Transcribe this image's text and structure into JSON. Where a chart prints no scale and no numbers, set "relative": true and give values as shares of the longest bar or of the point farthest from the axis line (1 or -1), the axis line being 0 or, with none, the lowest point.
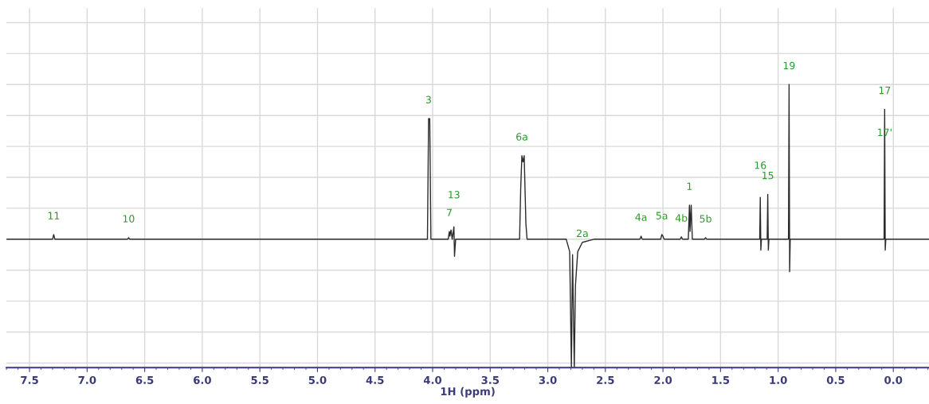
{
  "chart_data": {
    "type": "line",
    "relative": true,
    "xlabel": "1H (ppm)",
    "xlim": [
      7.7,
      -0.31
    ],
    "xticks": [
      7.5,
      {
        "value": 7.0,
        "label": "7.0"
      },
      6.5,
      {
        "value": 6.0,
        "label": "6.0"
      },
      5.5,
      {
        "value": 5.0,
        "label": "5.0"
      },
      4.5,
      {
        "value": 4.0,
        "label": "4.0"
      },
      3.5,
      {
        "value": 3.0,
        "label": "3.0"
      },
      2.5,
      {
        "value": 2.0,
        "label": "2.0"
      },
      1.5,
      {
        "value": 1.0,
        "label": "1.0"
      },
      0.5,
      {
        "value": 0,
        "label": "0.0"
      }
    ],
    "tick_labels": "x",
    "grid": true,
    "marker": "none",
    "line_style": "solid",
    "series": [
      {
        "color": "#2b2b2b",
        "x": [
          7.7,
          7.3,
          7.29,
          7.28,
          6.65,
          6.64,
          6.63,
          4.045,
          4.035,
          4.025,
          4.015,
          3.865,
          3.855,
          3.85,
          3.84,
          3.83,
          3.815,
          3.81,
          3.8,
          3.245,
          3.235,
          3.225,
          3.215,
          3.205,
          3.19,
          3.18,
          2.84,
          2.81,
          2.795,
          2.785,
          2.77,
          2.76,
          2.74,
          2.7,
          2.6,
          2.2,
          2.19,
          2.18,
          2.02,
          2.01,
          2.0,
          1.99,
          1.85,
          1.84,
          1.83,
          1.78,
          1.77,
          1.765,
          1.755,
          1.745,
          1.64,
          1.63,
          1.62,
          1.16,
          1.155,
          1.15,
          1.145,
          1.095,
          1.09,
          1.085,
          1.08,
          0.91,
          0.905,
          0.9,
          0.895,
          0.08,
          0.075,
          0.07,
          0.065,
          -0.31
        ],
        "values": [
          0,
          0,
          0.03,
          0,
          0,
          0.01,
          0,
          0,
          0.78,
          0.78,
          0,
          0,
          0.05,
          0.02,
          0.06,
          0,
          0.08,
          -0.11,
          0,
          0,
          0.33,
          0.54,
          0.5,
          0.54,
          0.1,
          0,
          0,
          -0.08,
          -0.83,
          -0.1,
          -0.83,
          -0.3,
          -0.08,
          -0.02,
          0,
          0,
          0.02,
          0,
          0,
          0.03,
          0.02,
          0,
          0,
          0.015,
          0,
          0,
          0.22,
          0.05,
          0.22,
          0,
          0,
          0.01,
          0,
          0,
          0.27,
          -0.07,
          0,
          0,
          0.29,
          -0.07,
          0,
          0,
          1.0,
          -0.21,
          0,
          0,
          0.84,
          -0.07,
          0,
          0
        ]
      }
    ],
    "annotations": [
      {
        "text": "11",
        "x": 7.29,
        "y": 0.03
      },
      {
        "text": "10",
        "x": 6.64,
        "y": 0.01
      },
      {
        "text": "3",
        "x": 4.035,
        "y": 0.78
      },
      {
        "text": "13",
        "x": 3.815,
        "y": 0.08
      },
      {
        "text": "7",
        "x": 3.855,
        "y": 0.05
      },
      {
        "text": "6a",
        "x": 3.225,
        "y": 0.54
      },
      {
        "text": "2a",
        "x": 2.7,
        "y": -0.02
      },
      {
        "text": "4a",
        "x": 2.19,
        "y": 0.02
      },
      {
        "text": "5a",
        "x": 2.01,
        "y": 0.03
      },
      {
        "text": "4b",
        "x": 1.84,
        "y": 0.015
      },
      {
        "text": "1",
        "x": 1.77,
        "y": 0.22
      },
      {
        "text": "5b",
        "x": 1.63,
        "y": 0.01
      },
      {
        "text": "16",
        "x": 1.155,
        "y": 0.27
      },
      {
        "text": "15",
        "x": 1.09,
        "y": 0.29
      },
      {
        "text": "19",
        "x": 0.905,
        "y": 1.0
      },
      {
        "text": "17",
        "x": 0.075,
        "y": 0.84
      },
      {
        "text": "17'",
        "x": 0.075,
        "y": 0.84
      }
    ]
  }
}
